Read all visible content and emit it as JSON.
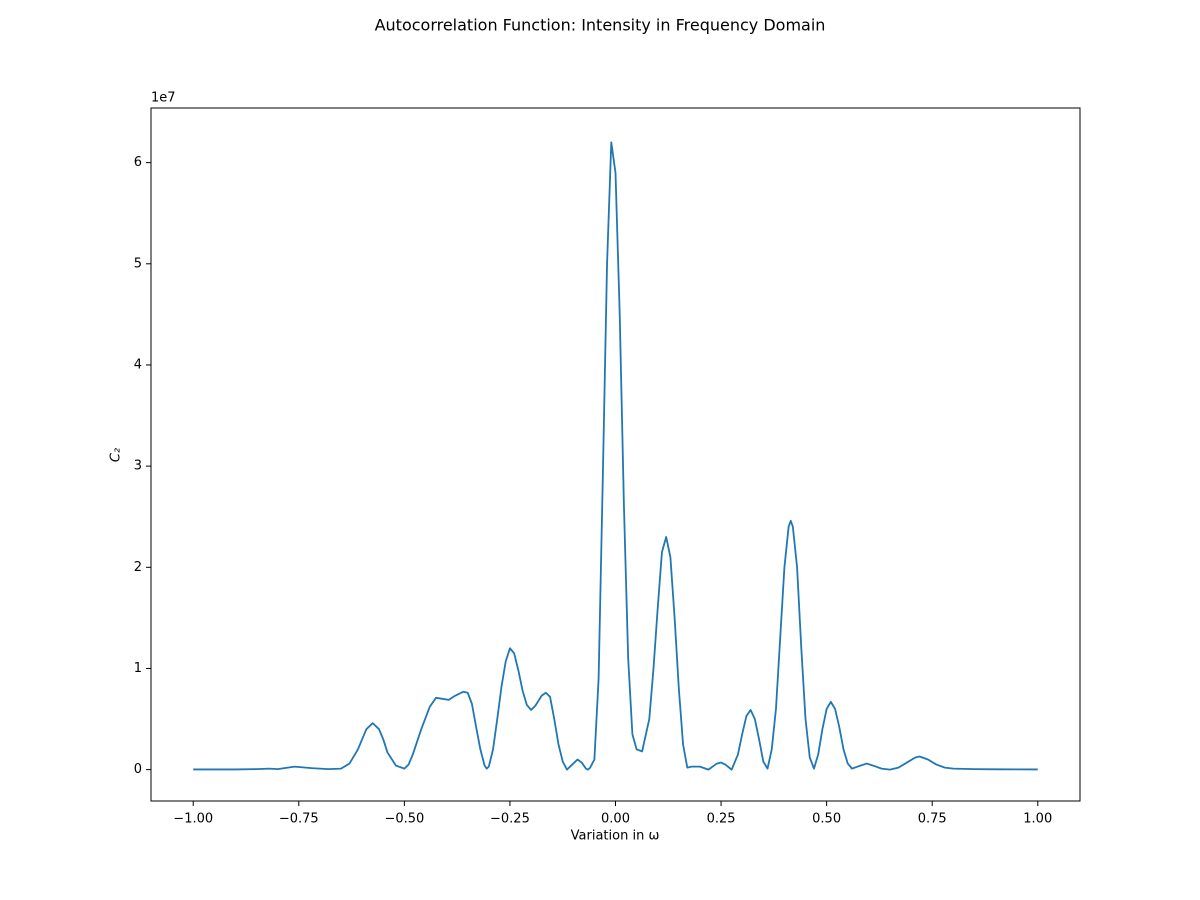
{
  "chart_data": {
    "type": "line",
    "title": "Autocorrelation Function: Intensity in Frequency Domain",
    "x_label": "Variation in ω",
    "y_label": "C₂",
    "y_offset_label": "1e7",
    "color": "#1f77b4",
    "grid": false,
    "xlim": [
      -1.1,
      1.1
    ],
    "ylim": [
      -0.31,
      6.54
    ],
    "xticks": [
      {
        "value": -1,
        "label": "−1.00"
      },
      {
        "value": -0.75,
        "label": "−0.75"
      },
      {
        "value": -0.5,
        "label": "−0.50"
      },
      {
        "value": -0.25,
        "label": "−0.25"
      },
      {
        "value": 0,
        "label": "0.00"
      },
      {
        "value": 0.25,
        "label": "0.25"
      },
      {
        "value": 0.5,
        "label": "0.50"
      },
      {
        "value": 0.75,
        "label": "0.75"
      },
      {
        "value": 1,
        "label": "1.00"
      }
    ],
    "yticks": [
      0,
      1,
      2,
      3,
      4,
      5,
      6
    ],
    "x": [
      -1,
      -0.9,
      -0.85,
      -0.82,
      -0.8,
      -0.76,
      -0.72,
      -0.68,
      -0.65,
      -0.63,
      -0.61,
      -0.6,
      -0.59,
      -0.575,
      -0.56,
      -0.55,
      -0.54,
      -0.52,
      -0.5,
      -0.49,
      -0.48,
      -0.46,
      -0.44,
      -0.425,
      -0.41,
      -0.395,
      -0.38,
      -0.36,
      -0.35,
      -0.34,
      -0.33,
      -0.32,
      -0.31,
      -0.305,
      -0.3,
      -0.29,
      -0.28,
      -0.27,
      -0.26,
      -0.25,
      -0.24,
      -0.23,
      -0.22,
      -0.21,
      -0.2,
      -0.19,
      -0.175,
      -0.165,
      -0.155,
      -0.145,
      -0.135,
      -0.125,
      -0.115,
      -0.1,
      -0.09,
      -0.08,
      -0.07,
      -0.065,
      -0.06,
      -0.05,
      -0.04,
      -0.03,
      -0.02,
      -0.01,
      0,
      0.01,
      0.02,
      0.03,
      0.04,
      0.05,
      0.063,
      0.08,
      0.09,
      0.1,
      0.11,
      0.12,
      0.13,
      0.14,
      0.15,
      0.16,
      0.17,
      0.18,
      0.2,
      0.22,
      0.24,
      0.25,
      0.26,
      0.275,
      0.29,
      0.3,
      0.31,
      0.32,
      0.33,
      0.34,
      0.35,
      0.36,
      0.37,
      0.38,
      0.39,
      0.4,
      0.41,
      0.415,
      0.42,
      0.43,
      0.44,
      0.45,
      0.46,
      0.47,
      0.48,
      0.49,
      0.5,
      0.51,
      0.52,
      0.53,
      0.54,
      0.55,
      0.56,
      0.58,
      0.595,
      0.61,
      0.63,
      0.65,
      0.67,
      0.69,
      0.71,
      0.72,
      0.74,
      0.76,
      0.78,
      0.8,
      0.85,
      0.9,
      1
    ],
    "values": [
      0.002,
      0.002,
      0.005,
      0.01,
      0.005,
      0.03,
      0.015,
      0.005,
      0.01,
      0.06,
      0.2,
      0.3,
      0.4,
      0.46,
      0.4,
      0.3,
      0.17,
      0.04,
      0.01,
      0.05,
      0.15,
      0.4,
      0.62,
      0.71,
      0.7,
      0.69,
      0.73,
      0.77,
      0.76,
      0.65,
      0.42,
      0.2,
      0.04,
      0.01,
      0.03,
      0.2,
      0.5,
      0.82,
      1.07,
      1.2,
      1.15,
      0.98,
      0.78,
      0.64,
      0.59,
      0.63,
      0.73,
      0.76,
      0.72,
      0.5,
      0.25,
      0.08,
      0,
      0.06,
      0.1,
      0.07,
      0.01,
      0,
      0.02,
      0.1,
      0.9,
      2.9,
      5.0,
      6.2,
      5.9,
      4.5,
      2.6,
      1.1,
      0.35,
      0.2,
      0.18,
      0.5,
      1.0,
      1.6,
      2.15,
      2.3,
      2.1,
      1.5,
      0.8,
      0.25,
      0.02,
      0.03,
      0.03,
      0,
      0.06,
      0.07,
      0.05,
      0,
      0.15,
      0.35,
      0.53,
      0.59,
      0.5,
      0.3,
      0.08,
      0.01,
      0.2,
      0.6,
      1.3,
      2.0,
      2.4,
      2.46,
      2.4,
      2.0,
      1.2,
      0.5,
      0.12,
      0.01,
      0.15,
      0.4,
      0.6,
      0.67,
      0.6,
      0.42,
      0.2,
      0.06,
      0.01,
      0.04,
      0.06,
      0.04,
      0.01,
      0,
      0.02,
      0.07,
      0.12,
      0.13,
      0.1,
      0.05,
      0.02,
      0.01,
      0.005,
      0.003,
      0.002
    ]
  }
}
